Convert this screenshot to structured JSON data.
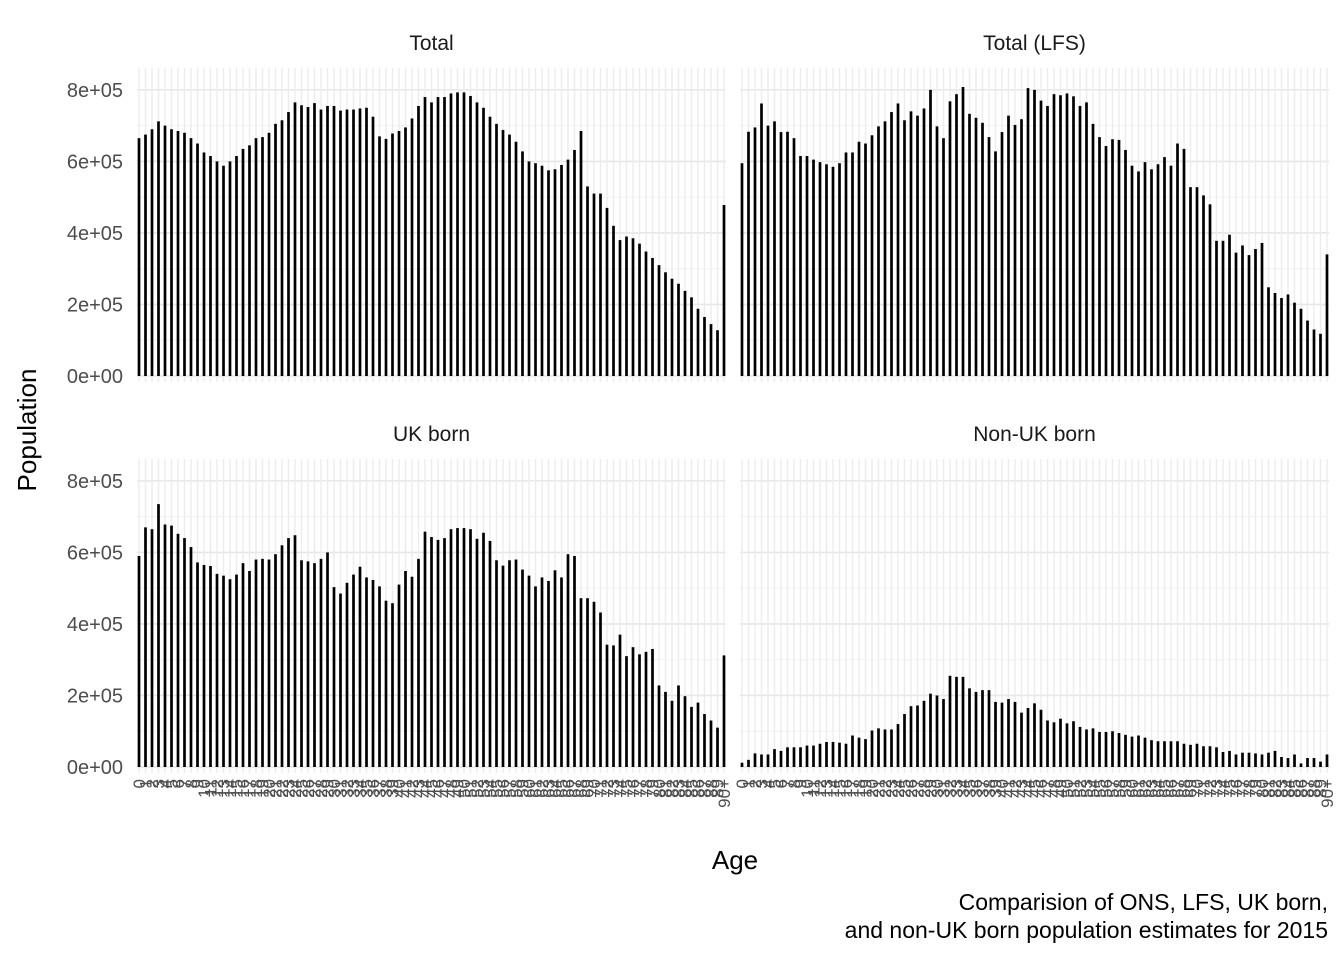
{
  "figure": {
    "x_axis_title": "Age",
    "y_axis_title": "Population",
    "caption_line1": "Comparision of ONS, LFS, UK born,",
    "caption_line2": "and non-UK born population estimates for 2015"
  },
  "chart_data": {
    "type": "bar",
    "layout": "facet grid 2x2",
    "grid": true,
    "xlabel": "Age",
    "ylabel": "Population",
    "ylim": [
      0,
      850000
    ],
    "yticks": [
      0,
      200000,
      400000,
      600000,
      800000
    ],
    "ytick_labels": [
      "0e+00",
      "2e+05",
      "4e+05",
      "6e+05",
      "8e+05"
    ],
    "categories": [
      "0",
      "1",
      "2",
      "3",
      "4",
      "5",
      "6",
      "7",
      "8",
      "9",
      "10",
      "11",
      "12",
      "13",
      "14",
      "15",
      "16",
      "17",
      "18",
      "19",
      "20",
      "21",
      "22",
      "23",
      "24",
      "25",
      "26",
      "27",
      "28",
      "29",
      "30",
      "31",
      "32",
      "33",
      "34",
      "35",
      "36",
      "37",
      "38",
      "39",
      "40",
      "41",
      "42",
      "43",
      "44",
      "45",
      "46",
      "47",
      "48",
      "49",
      "50",
      "51",
      "52",
      "53",
      "54",
      "55",
      "56",
      "57",
      "58",
      "59",
      "60",
      "61",
      "62",
      "63",
      "64",
      "65",
      "66",
      "67",
      "68",
      "69",
      "70",
      "71",
      "72",
      "73",
      "74",
      "75",
      "76",
      "77",
      "78",
      "79",
      "80",
      "81",
      "82",
      "83",
      "84",
      "85",
      "86",
      "87",
      "88",
      "89",
      "90+"
    ],
    "panels": [
      {
        "title": "Total",
        "values": [
          665000,
          675000,
          690000,
          712000,
          700000,
          690000,
          685000,
          680000,
          665000,
          650000,
          625000,
          615000,
          600000,
          588000,
          600000,
          615000,
          635000,
          645000,
          665000,
          668000,
          680000,
          705000,
          715000,
          738000,
          765000,
          757000,
          752000,
          763000,
          745000,
          755000,
          755000,
          742000,
          745000,
          745000,
          748000,
          750000,
          725000,
          670000,
          663000,
          678000,
          685000,
          695000,
          720000,
          755000,
          780000,
          765000,
          780000,
          780000,
          790000,
          793000,
          793000,
          783000,
          765000,
          750000,
          725000,
          705000,
          688000,
          675000,
          655000,
          628000,
          600000,
          595000,
          588000,
          575000,
          578000,
          590000,
          605000,
          632000,
          685000,
          530000,
          510000,
          510000,
          470000,
          420000,
          380000,
          390000,
          385000,
          370000,
          348000,
          330000,
          310000,
          290000,
          272000,
          258000,
          238000,
          220000,
          188000,
          165000,
          145000,
          128000,
          478000
        ]
      },
      {
        "title": "Total (LFS)",
        "values": [
          595000,
          683000,
          695000,
          762000,
          700000,
          712000,
          682000,
          683000,
          665000,
          615000,
          615000,
          605000,
          598000,
          592000,
          585000,
          595000,
          625000,
          625000,
          655000,
          650000,
          673000,
          698000,
          712000,
          738000,
          762000,
          715000,
          740000,
          728000,
          748000,
          800000,
          698000,
          665000,
          768000,
          788000,
          808000,
          733000,
          722000,
          708000,
          668000,
          628000,
          682000,
          728000,
          702000,
          718000,
          805000,
          800000,
          770000,
          755000,
          788000,
          785000,
          790000,
          782000,
          755000,
          765000,
          705000,
          668000,
          643000,
          662000,
          660000,
          632000,
          588000,
          572000,
          598000,
          578000,
          592000,
          612000,
          588000,
          650000,
          635000,
          528000,
          528000,
          505000,
          480000,
          378000,
          378000,
          395000,
          345000,
          365000,
          338000,
          355000,
          372000,
          248000,
          232000,
          218000,
          228000,
          205000,
          188000,
          155000,
          130000,
          118000,
          340000
        ]
      },
      {
        "title": "UK born",
        "values": [
          590000,
          670000,
          665000,
          735000,
          678000,
          675000,
          652000,
          640000,
          615000,
          572000,
          565000,
          562000,
          540000,
          535000,
          525000,
          538000,
          570000,
          548000,
          580000,
          582000,
          580000,
          595000,
          620000,
          640000,
          648000,
          578000,
          575000,
          570000,
          582000,
          600000,
          503000,
          485000,
          515000,
          538000,
          560000,
          530000,
          523000,
          505000,
          465000,
          458000,
          510000,
          548000,
          532000,
          582000,
          658000,
          643000,
          635000,
          640000,
          665000,
          668000,
          668000,
          665000,
          638000,
          655000,
          632000,
          578000,
          563000,
          578000,
          580000,
          552000,
          535000,
          505000,
          530000,
          520000,
          550000,
          530000,
          595000,
          590000,
          472000,
          472000,
          462000,
          432000,
          342000,
          340000,
          370000,
          310000,
          335000,
          315000,
          322000,
          330000,
          228000,
          210000,
          185000,
          228000,
          198000,
          168000,
          180000,
          148000,
          130000,
          110000,
          312000
        ]
      },
      {
        "title": "Non-UK born",
        "values": [
          12000,
          20000,
          38000,
          35000,
          35000,
          50000,
          45000,
          55000,
          55000,
          55000,
          60000,
          60000,
          65000,
          70000,
          70000,
          68000,
          65000,
          88000,
          82000,
          78000,
          102000,
          108000,
          105000,
          105000,
          120000,
          148000,
          170000,
          172000,
          185000,
          205000,
          200000,
          190000,
          255000,
          252000,
          252000,
          220000,
          210000,
          215000,
          215000,
          182000,
          180000,
          190000,
          182000,
          152000,
          165000,
          178000,
          160000,
          130000,
          125000,
          135000,
          122000,
          128000,
          112000,
          105000,
          108000,
          98000,
          98000,
          100000,
          95000,
          90000,
          85000,
          88000,
          82000,
          75000,
          72000,
          72000,
          72000,
          72000,
          65000,
          62000,
          65000,
          58000,
          58000,
          55000,
          42000,
          45000,
          35000,
          40000,
          40000,
          38000,
          35000,
          40000,
          45000,
          28000,
          25000,
          35000,
          10000,
          25000,
          25000,
          15000,
          35000
        ]
      }
    ]
  }
}
